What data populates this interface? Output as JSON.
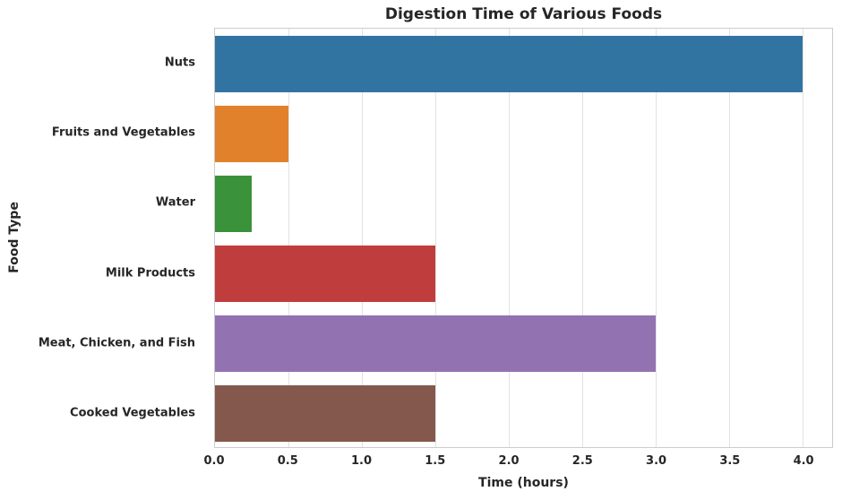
{
  "chart_data": {
    "type": "bar",
    "orientation": "horizontal",
    "title": "Digestion Time of Various Foods",
    "xlabel": "Time (hours)",
    "ylabel": "Food Type",
    "categories": [
      "Nuts",
      "Fruits and Vegetables",
      "Water",
      "Milk Products",
      "Meat, Chicken, and Fish",
      "Cooked Vegetables"
    ],
    "values": [
      4.0,
      0.5,
      0.25,
      1.5,
      3.0,
      1.5
    ],
    "bar_colors": [
      "#3274a1",
      "#e1812c",
      "#3a923a",
      "#c03d3e",
      "#9372b2",
      "#85584e"
    ],
    "xlim": [
      0,
      4.2
    ],
    "xticks": [
      "0.0",
      "0.5",
      "1.0",
      "1.5",
      "2.0",
      "2.5",
      "3.0",
      "3.5",
      "4.0"
    ],
    "grid": true,
    "legend": "none",
    "colors": {
      "text": "#262626",
      "grid": "#e2e2e2",
      "spine": "#cccccc",
      "background": "#ffffff"
    }
  }
}
